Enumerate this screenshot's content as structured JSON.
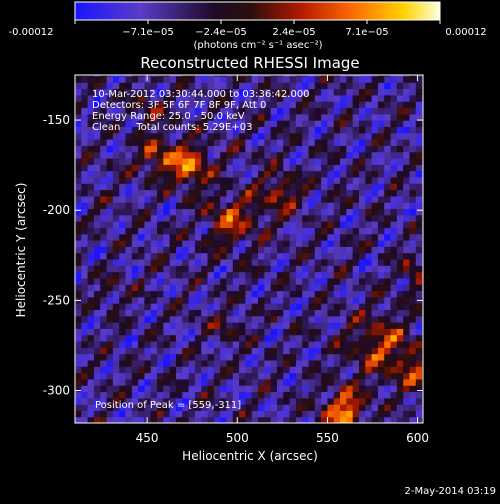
{
  "colorbar": {
    "tick_labels": [
      "-0.00012",
      "−7.1e−05",
      "−2.4e−05",
      "2.4e−05",
      "7.1e−05",
      "0.00012"
    ],
    "units_label": "(photons cm⁻² s⁻¹ asec⁻²)"
  },
  "chart_data": {
    "type": "heatmap",
    "title": "Reconstructed RHESSI Image",
    "xlabel": "Heliocentric X (arcsec)",
    "ylabel": "Heliocentric Y (arcsec)",
    "xlim": [
      410,
      603
    ],
    "ylim": [
      -318,
      -125
    ],
    "x_ticks": [
      "450",
      "500",
      "550",
      "600"
    ],
    "y_ticks": [
      "-150",
      "-200",
      "-250",
      "-300"
    ],
    "x_tick_values": [
      450,
      500,
      550,
      600
    ],
    "y_tick_values": [
      -150,
      -200,
      -250,
      -300
    ],
    "color_range": [
      -0.00012,
      0.00012
    ],
    "sources": [
      {
        "x": 473,
        "y": -175,
        "peak": 0.00011,
        "sigma": 8
      },
      {
        "x": 455,
        "y": -170,
        "peak": 8e-05,
        "sigma": 7
      },
      {
        "x": 497,
        "y": -205,
        "peak": 8e-05,
        "sigma": 10
      },
      {
        "x": 524,
        "y": -190,
        "peak": 7e-05,
        "sigma": 8
      },
      {
        "x": 451,
        "y": -145,
        "peak": 5e-05,
        "sigma": 6
      },
      {
        "x": 559,
        "y": -311,
        "peak": 0.00012,
        "sigma": 8
      },
      {
        "x": 580,
        "y": -275,
        "peak": 8e-05,
        "sigma": 12
      },
      {
        "x": 600,
        "y": -290,
        "peak": 6e-05,
        "sigma": 8
      },
      {
        "x": 599,
        "y": -235,
        "peak": 6e-05,
        "sigma": 6
      },
      {
        "x": 495,
        "y": -265,
        "peak": 4e-05,
        "sigma": 6
      },
      {
        "x": 430,
        "y": -245,
        "peak": 3e-05,
        "sigma": 6
      }
    ],
    "annotations": [
      "10-Mar-2012 03:30:44.000 to 03:36:42.000",
      "Detectors: 3F 5F 6F 7F 8F 9F, Att 0",
      "Energy Range: 25.0 - 50.0 keV",
      "Clean     Total counts: 5.29E+03"
    ],
    "peak_label": "Position of Peak = [559,-311]",
    "colormap": [
      "#1a14ff",
      "#5a3cc8",
      "#1e0a28",
      "#2a0e0e",
      "#b41a00",
      "#ff6a00",
      "#ffd200",
      "#ffffdc"
    ]
  },
  "footer": {
    "date": "2-May-2014 03:19"
  }
}
